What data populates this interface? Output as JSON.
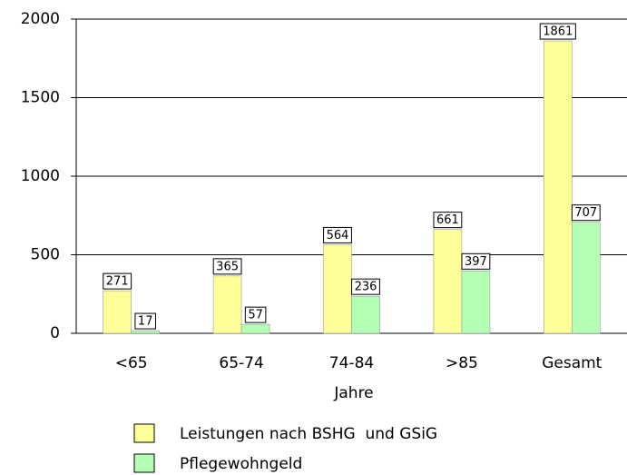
{
  "chart_data": {
    "type": "bar",
    "categories": [
      "<65",
      "65-74",
      "74-84",
      ">85",
      "Gesamt"
    ],
    "x_label": "Jahre",
    "series": [
      {
        "name": "Leistungen nach BSHG  und GSiG",
        "color": "#ffff99",
        "values": [
          271,
          365,
          564,
          661,
          1861
        ]
      },
      {
        "name": "Pflegewohngeld",
        "color": "#b3ffb3",
        "values": [
          17,
          57,
          236,
          397,
          707
        ]
      }
    ],
    "ylim": [
      0,
      2000
    ],
    "yticks": [
      0,
      500,
      1000,
      1500,
      2000
    ],
    "grid": true,
    "legend": "bottom"
  }
}
